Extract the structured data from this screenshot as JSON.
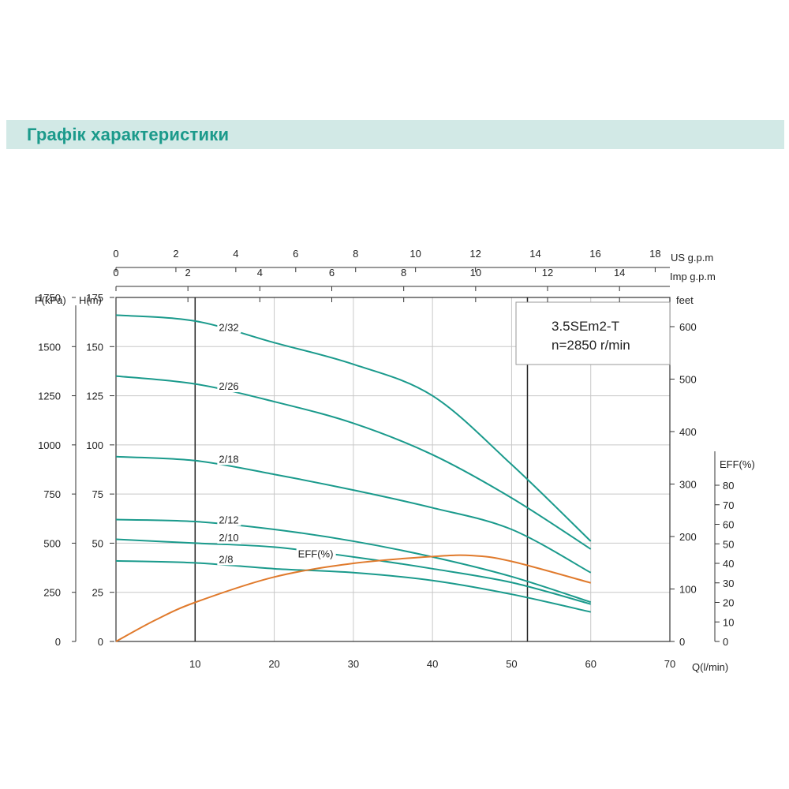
{
  "header": {
    "title": "Графік характеристики"
  },
  "chart_data": {
    "type": "line",
    "model_label": {
      "line1": "3.5SEm2-T",
      "line2": "n=2850 r/min"
    },
    "x_axis": {
      "label": "Q(l/min)",
      "min": 0,
      "max": 70,
      "ticks": [
        10,
        20,
        30,
        40,
        50,
        60,
        70
      ]
    },
    "top_axes": [
      {
        "unit": "US  g.p.m",
        "ticks": [
          0,
          2,
          4,
          6,
          8,
          10,
          12,
          14,
          16,
          18
        ],
        "max": 18.49
      },
      {
        "unit": "Imp  g.p.m",
        "ticks": [
          0,
          2,
          4,
          6,
          8,
          10,
          12,
          14
        ],
        "max": 15.4
      }
    ],
    "y_axis_head": {
      "label": "H(m)",
      "min": 0,
      "max": 175,
      "ticks": [
        0,
        25,
        50,
        75,
        100,
        125,
        150,
        175
      ]
    },
    "y_axis_pressure": {
      "label": "P(kPa)",
      "ticks": [
        0,
        250,
        500,
        750,
        1000,
        1250,
        1500,
        1750
      ]
    },
    "y_axis_feet": {
      "label": "feet",
      "ticks": [
        0,
        100,
        200,
        300,
        400,
        500,
        600
      ]
    },
    "y_axis_eff": {
      "label": "EFF(%)",
      "ticks": [
        0,
        10,
        20,
        30,
        40,
        50,
        60,
        70,
        80
      ]
    },
    "vertical_marks": [
      10,
      52
    ],
    "series": [
      {
        "name": "2/32",
        "color": "#1a9a8c",
        "label_at": [
          13,
          158
        ],
        "points": [
          [
            0,
            166
          ],
          [
            10,
            163
          ],
          [
            20,
            152
          ],
          [
            30,
            141
          ],
          [
            40,
            125
          ],
          [
            50,
            90
          ],
          [
            60,
            51
          ]
        ]
      },
      {
        "name": "2/26",
        "color": "#1a9a8c",
        "label_at": [
          13,
          128
        ],
        "points": [
          [
            0,
            135
          ],
          [
            10,
            131
          ],
          [
            20,
            122
          ],
          [
            30,
            111
          ],
          [
            40,
            95
          ],
          [
            50,
            73
          ],
          [
            60,
            47
          ]
        ]
      },
      {
        "name": "2/18",
        "color": "#1a9a8c",
        "label_at": [
          13,
          91
        ],
        "points": [
          [
            0,
            94
          ],
          [
            10,
            92
          ],
          [
            20,
            85
          ],
          [
            30,
            77
          ],
          [
            40,
            68
          ],
          [
            50,
            57
          ],
          [
            60,
            35
          ]
        ]
      },
      {
        "name": "2/12",
        "color": "#1a9a8c",
        "label_at": [
          13,
          60
        ],
        "points": [
          [
            0,
            62
          ],
          [
            10,
            61
          ],
          [
            20,
            57
          ],
          [
            30,
            51
          ],
          [
            40,
            43
          ],
          [
            50,
            33
          ],
          [
            60,
            20
          ]
        ]
      },
      {
        "name": "2/10",
        "color": "#1a9a8c",
        "label_at": [
          13,
          51
        ],
        "points": [
          [
            0,
            52
          ],
          [
            10,
            50
          ],
          [
            20,
            48
          ],
          [
            30,
            43
          ],
          [
            40,
            37
          ],
          [
            50,
            30
          ],
          [
            60,
            19
          ]
        ]
      },
      {
        "name": "2/8",
        "color": "#1a9a8c",
        "label_at": [
          13,
          40
        ],
        "points": [
          [
            0,
            41
          ],
          [
            10,
            40
          ],
          [
            20,
            37
          ],
          [
            30,
            35
          ],
          [
            40,
            31
          ],
          [
            50,
            24
          ],
          [
            60,
            15
          ]
        ]
      },
      {
        "name": "EFF(%)",
        "color": "#e07a2c",
        "axis": "eff",
        "label_at": [
          23,
          43
        ],
        "points": [
          [
            0,
            0
          ],
          [
            5,
            11
          ],
          [
            10,
            20
          ],
          [
            20,
            33
          ],
          [
            30,
            40
          ],
          [
            40,
            43.5
          ],
          [
            45,
            44
          ],
          [
            50,
            41
          ],
          [
            60,
            30
          ]
        ]
      }
    ]
  }
}
